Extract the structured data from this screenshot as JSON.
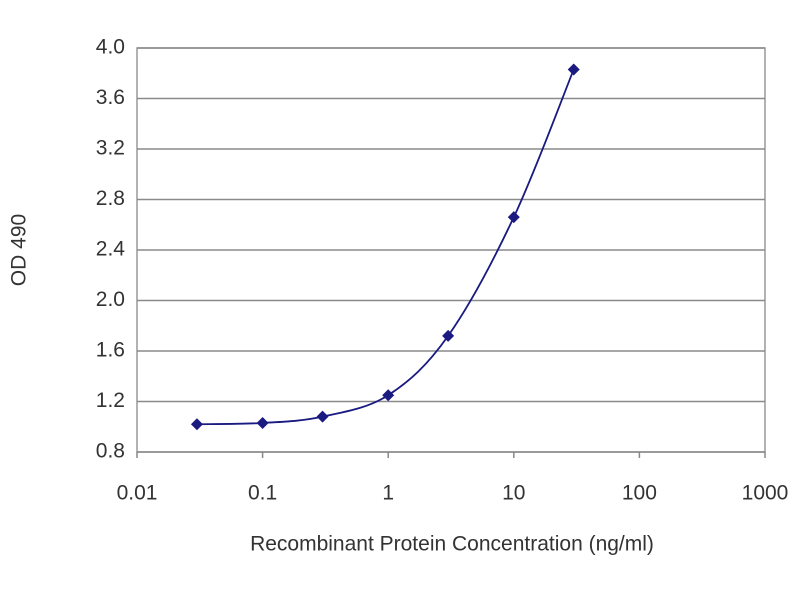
{
  "chart_data": {
    "type": "line",
    "x_label": "Recombinant Protein Concentration (ng/ml)",
    "y_label": "OD 490",
    "x": [
      0.03,
      0.1,
      0.3,
      1,
      3,
      10,
      30
    ],
    "series": [
      {
        "color": "#1a1a80",
        "values": [
          1.02,
          1.03,
          1.08,
          1.25,
          1.72,
          2.66,
          3.83
        ]
      }
    ],
    "xlim": [
      0.01,
      1000
    ],
    "x_log": true,
    "xticks": [
      0.01,
      0.1,
      1,
      10,
      100,
      1000
    ],
    "ylim": [
      0.8,
      4.0
    ],
    "yticks": [
      0.8,
      1.2,
      1.6,
      {
        "value": 2.0,
        "label": "2.0"
      },
      2.4,
      2.8,
      3.2,
      3.6,
      {
        "value": 4.0,
        "label": "4.0"
      }
    ],
    "grid": true,
    "smooth": true
  }
}
